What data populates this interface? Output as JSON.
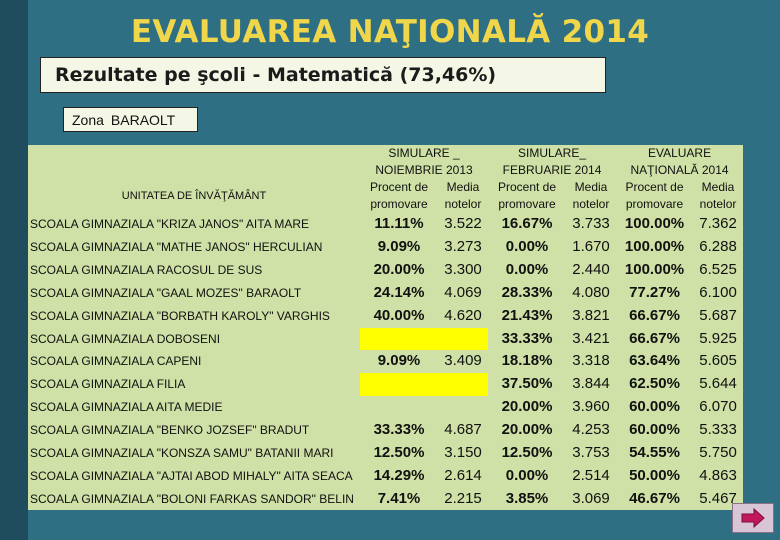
{
  "title": "EVALUAREA NAŢIONALĂ 2014",
  "subtitle": "Rezultate pe şcoli -  Matematică (73,46%)",
  "zone": {
    "label": "Zona",
    "value": "BARAOLT"
  },
  "table": {
    "unit_header": "UNITATEA DE ÎNVĂŢĂMÂNT",
    "group_headers": [
      {
        "line1": "SIMULARE _",
        "line2": "NOIEMBRIE 2013"
      },
      {
        "line1": "SIMULARE_",
        "line2": "FEBRUARIE 2014"
      },
      {
        "line1": "EVALUARE",
        "line2": "NAŢIONALĂ 2014"
      }
    ],
    "sub_headers": [
      {
        "line1": "Procent de",
        "line2": "promovare"
      },
      {
        "line1": "Media",
        "line2": "notelor"
      },
      {
        "line1": "Procent de",
        "line2": "promovare"
      },
      {
        "line1": "Media",
        "line2": "notelor"
      },
      {
        "line1": "Procent de",
        "line2": "promovare"
      },
      {
        "line1": "Media",
        "line2": "notelor"
      }
    ],
    "rows": [
      {
        "school": "SCOALA GIMNAZIALA \"KRIZA JANOS\" AITA MARE",
        "v": [
          "11.11%",
          "3.522",
          "16.67%",
          "3.733",
          "100.00%",
          "7.362"
        ]
      },
      {
        "school": "SCOALA GIMNAZIALA \"MATHE JANOS\" HERCULIAN",
        "v": [
          "9.09%",
          "3.273",
          "0.00%",
          "1.670",
          "100.00%",
          "6.288"
        ]
      },
      {
        "school": "SCOALA GIMNAZIALA RACOSUL DE SUS",
        "v": [
          "20.00%",
          "3.300",
          "0.00%",
          "2.440",
          "100.00%",
          "6.525"
        ]
      },
      {
        "school": "SCOALA GIMNAZIALA \"GAAL MOZES\" BARAOLT",
        "v": [
          "24.14%",
          "4.069",
          "28.33%",
          "4.080",
          "77.27%",
          "6.100"
        ]
      },
      {
        "school": "SCOALA GIMNAZIALA \"BORBATH KAROLY\" VARGHIS",
        "v": [
          "40.00%",
          "4.620",
          "21.43%",
          "3.821",
          "66.67%",
          "5.687"
        ]
      },
      {
        "school": "SCOALA GIMNAZIALA DOBOSENI",
        "v": [
          "",
          "",
          "33.33%",
          "3.421",
          "66.67%",
          "5.925"
        ],
        "yellow": true
      },
      {
        "school": "SCOALA GIMNAZIALA CAPENI",
        "v": [
          "9.09%",
          "3.409",
          "18.18%",
          "3.318",
          "63.64%",
          "5.605"
        ]
      },
      {
        "school": "SCOALA GIMNAZIALA FILIA",
        "v": [
          "",
          "",
          "37.50%",
          "3.844",
          "62.50%",
          "5.644"
        ],
        "yellow": true
      },
      {
        "school": "SCOALA GIMNAZIALA  AITA MEDIE",
        "v": [
          "",
          "",
          "20.00%",
          "3.960",
          "60.00%",
          "6.070"
        ]
      },
      {
        "school": "SCOALA GIMNAZIALA \"BENKO JOZSEF\" BRADUT",
        "v": [
          "33.33%",
          "4.687",
          "20.00%",
          "4.253",
          "60.00%",
          "5.333"
        ]
      },
      {
        "school": "SCOALA GIMNAZIALA \"KONSZA SAMU\" BATANII MARI",
        "v": [
          "12.50%",
          "3.150",
          "12.50%",
          "3.753",
          "54.55%",
          "5.750"
        ]
      },
      {
        "school": "SCOALA GIMNAZIALA \"AJTAI ABOD MIHALY\" AITA SEACA",
        "v": [
          "14.29%",
          "2.614",
          "0.00%",
          "2.514",
          "50.00%",
          "4.863"
        ]
      },
      {
        "school": "SCOALA GIMNAZIALA \"BOLONI FARKAS SANDOR\" BELIN",
        "v": [
          "7.41%",
          "2.215",
          "3.85%",
          "3.069",
          "46.67%",
          "5.467"
        ]
      }
    ]
  },
  "colors": {
    "background": "#2f6f84",
    "table": "#cfe1a6",
    "title": "#f0d64a",
    "highlight": "#ffff00"
  },
  "nav": {
    "icon": "arrow-right-icon"
  }
}
